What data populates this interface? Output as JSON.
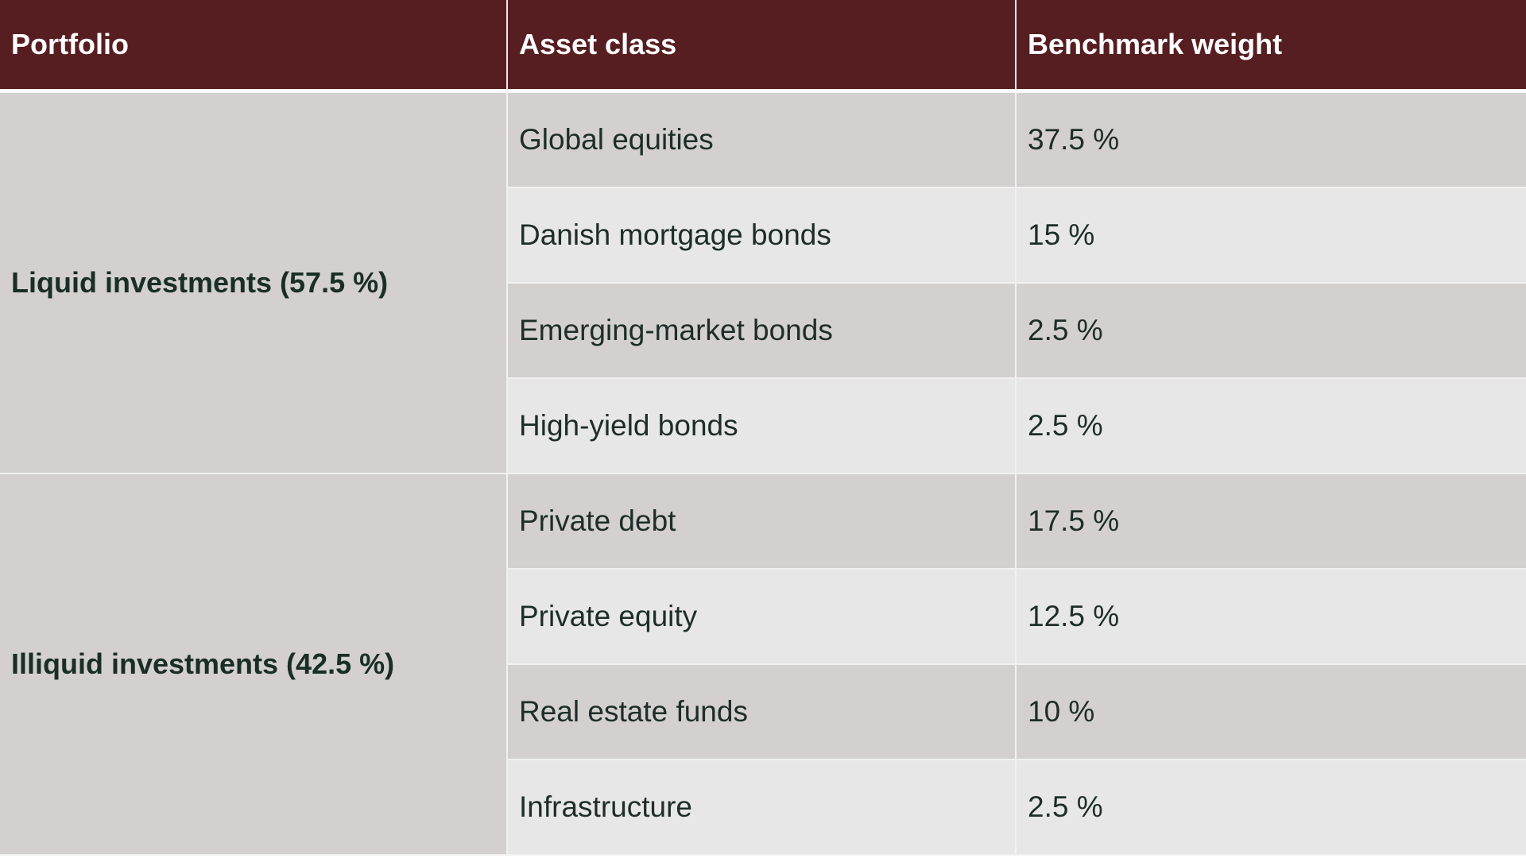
{
  "header": {
    "col1": "Portfolio",
    "col2": "Asset class",
    "col3": "Benchmark weight"
  },
  "groups": [
    {
      "label": "Liquid investments (57.5 %)",
      "rows": [
        {
          "asset": "Global equities",
          "weight": "37.5 %"
        },
        {
          "asset": "Danish mortgage bonds",
          "weight": "15 %"
        },
        {
          "asset": "Emerging-market bonds",
          "weight": "2.5 %"
        },
        {
          "asset": "High-yield bonds",
          "weight": "2.5 %"
        }
      ]
    },
    {
      "label": "Illiquid investments (42.5 %)",
      "rows": [
        {
          "asset": "Private debt",
          "weight": "17.5 %"
        },
        {
          "asset": "Private equity",
          "weight": "12.5 %"
        },
        {
          "asset": "Real estate funds",
          "weight": "10 %"
        },
        {
          "asset": "Infrastructure",
          "weight": "2.5 %"
        }
      ]
    }
  ],
  "colors": {
    "header_bg": "#571e21",
    "shade_row": "#d3d0cf",
    "light_row": "#e8e7e7",
    "text": "#1e2d29"
  }
}
